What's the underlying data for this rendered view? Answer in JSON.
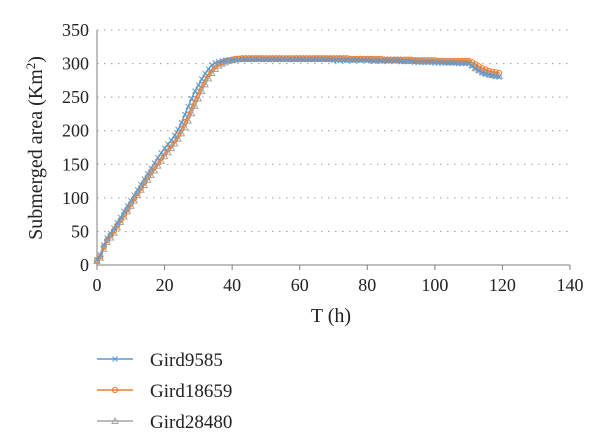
{
  "chart_data": {
    "type": "line",
    "xlabel": "T (h)",
    "ylabel": "Submerged area (Km",
    "ylabel_sup": "2",
    "ylabel_close": ")",
    "xlim": [
      0,
      140
    ],
    "ylim": [
      0,
      350
    ],
    "xticks": [
      0,
      20,
      40,
      60,
      80,
      100,
      120,
      140
    ],
    "yticks": [
      0,
      50,
      100,
      150,
      200,
      250,
      300,
      350
    ],
    "grid": "horizontal dotted",
    "legend_position": "bottom-left",
    "series": [
      {
        "name": "Gird9585",
        "color": "#5b9bd5",
        "marker": "x",
        "x": [
          0,
          1,
          2,
          3,
          4,
          5,
          6,
          7,
          8,
          9,
          10,
          11,
          12,
          13,
          14,
          15,
          16,
          17,
          18,
          19,
          20,
          21,
          22,
          23,
          24,
          25,
          26,
          27,
          28,
          29,
          30,
          31,
          32,
          33,
          34,
          35,
          36,
          37,
          38,
          39,
          40,
          41,
          42,
          43,
          44,
          45,
          46,
          47,
          48,
          49,
          50,
          51,
          52,
          53,
          54,
          55,
          56,
          57,
          58,
          59,
          60,
          61,
          62,
          63,
          64,
          65,
          66,
          67,
          68,
          69,
          70,
          71,
          72,
          73,
          74,
          75,
          76,
          77,
          78,
          79,
          80,
          81,
          82,
          83,
          84,
          85,
          86,
          87,
          88,
          89,
          90,
          91,
          92,
          93,
          94,
          95,
          96,
          97,
          98,
          99,
          100,
          101,
          102,
          103,
          104,
          105,
          106,
          107,
          108,
          109,
          110,
          111,
          112,
          113,
          114,
          115,
          116,
          117,
          118,
          119
        ],
        "y": [
          8,
          15,
          30,
          40,
          47,
          55,
          63,
          71,
          80,
          88,
          96,
          104,
          112,
          120,
          128,
          136,
          144,
          152,
          160,
          167,
          174,
          180,
          186,
          193,
          202,
          212,
          224,
          236,
          248,
          259,
          268,
          277,
          285,
          292,
          298,
          301,
          303,
          304,
          305,
          305,
          305,
          306,
          306,
          306,
          306,
          306,
          306,
          306,
          306,
          306,
          306,
          306,
          306,
          306,
          306,
          306,
          306,
          306,
          306,
          306,
          306,
          306,
          306,
          306,
          306,
          306,
          306,
          306,
          306,
          306,
          305,
          305,
          305,
          305,
          305,
          305,
          305,
          305,
          305,
          305,
          305,
          304,
          304,
          304,
          304,
          304,
          304,
          304,
          304,
          304,
          303,
          303,
          303,
          303,
          302,
          302,
          302,
          302,
          302,
          302,
          301,
          301,
          301,
          301,
          301,
          301,
          301,
          300,
          300,
          300,
          300,
          296,
          292,
          289,
          286,
          284,
          283,
          282,
          281,
          280
        ]
      },
      {
        "name": "Gird18659",
        "color": "#ed7d31",
        "marker": "o",
        "x": [
          0,
          1,
          2,
          3,
          4,
          5,
          6,
          7,
          8,
          9,
          10,
          11,
          12,
          13,
          14,
          15,
          16,
          17,
          18,
          19,
          20,
          21,
          22,
          23,
          24,
          25,
          26,
          27,
          28,
          29,
          30,
          31,
          32,
          33,
          34,
          35,
          36,
          37,
          38,
          39,
          40,
          41,
          42,
          43,
          44,
          45,
          46,
          47,
          48,
          49,
          50,
          51,
          52,
          53,
          54,
          55,
          56,
          57,
          58,
          59,
          60,
          61,
          62,
          63,
          64,
          65,
          66,
          67,
          68,
          69,
          70,
          71,
          72,
          73,
          74,
          75,
          76,
          77,
          78,
          79,
          80,
          81,
          82,
          83,
          84,
          85,
          86,
          87,
          88,
          89,
          90,
          91,
          92,
          93,
          94,
          95,
          96,
          97,
          98,
          99,
          100,
          101,
          102,
          103,
          104,
          105,
          106,
          107,
          108,
          109,
          110,
          111,
          112,
          113,
          114,
          115,
          116,
          117,
          118,
          119
        ],
        "y": [
          7,
          13,
          27,
          37,
          44,
          51,
          59,
          67,
          75,
          83,
          91,
          99,
          107,
          115,
          123,
          131,
          139,
          146,
          153,
          160,
          167,
          173,
          179,
          186,
          194,
          203,
          213,
          224,
          236,
          247,
          258,
          268,
          277,
          285,
          292,
          297,
          300,
          302,
          304,
          305,
          306,
          307,
          307,
          308,
          308,
          308,
          308,
          308,
          308,
          308,
          308,
          308,
          308,
          308,
          308,
          308,
          308,
          308,
          308,
          308,
          308,
          308,
          308,
          308,
          308,
          308,
          308,
          308,
          308,
          308,
          308,
          308,
          308,
          308,
          308,
          307,
          307,
          307,
          307,
          307,
          307,
          307,
          307,
          307,
          307,
          306,
          306,
          306,
          306,
          306,
          306,
          306,
          306,
          306,
          305,
          305,
          305,
          305,
          305,
          305,
          305,
          304,
          304,
          304,
          304,
          304,
          304,
          304,
          304,
          304,
          304,
          302,
          299,
          296,
          293,
          291,
          289,
          288,
          287,
          286
        ]
      },
      {
        "name": "Gird28480",
        "color": "#a5a5a5",
        "marker": "triangle",
        "x": [
          0,
          1,
          2,
          3,
          4,
          5,
          6,
          7,
          8,
          9,
          10,
          11,
          12,
          13,
          14,
          15,
          16,
          17,
          18,
          19,
          20,
          21,
          22,
          23,
          24,
          25,
          26,
          27,
          28,
          29,
          30,
          31,
          32,
          33,
          34,
          35,
          36,
          37,
          38,
          39,
          40,
          41,
          42,
          43,
          44,
          45,
          46,
          47,
          48,
          49,
          50,
          51,
          52,
          53,
          54,
          55,
          56,
          57,
          58,
          59,
          60,
          61,
          62,
          63,
          64,
          65,
          66,
          67,
          68,
          69,
          70,
          71,
          72,
          73,
          74,
          75,
          76,
          77,
          78,
          79,
          80,
          81,
          82,
          83,
          84,
          85,
          86,
          87,
          88,
          89,
          90,
          91,
          92,
          93,
          94,
          95,
          96,
          97,
          98,
          99,
          100,
          101,
          102,
          103,
          104,
          105,
          106,
          107,
          108,
          109,
          110,
          111,
          112,
          113,
          114,
          115,
          116,
          117,
          118,
          119
        ],
        "y": [
          6,
          11,
          24,
          34,
          41,
          48,
          56,
          64,
          72,
          80,
          88,
          96,
          104,
          112,
          119,
          127,
          134,
          141,
          148,
          155,
          162,
          168,
          174,
          181,
          188,
          196,
          205,
          215,
          226,
          237,
          248,
          259,
          269,
          278,
          286,
          292,
          297,
          300,
          302,
          304,
          305,
          306,
          307,
          307,
          307,
          307,
          307,
          307,
          307,
          307,
          307,
          307,
          307,
          307,
          307,
          307,
          307,
          307,
          307,
          307,
          307,
          307,
          307,
          307,
          307,
          307,
          307,
          307,
          307,
          307,
          307,
          307,
          307,
          306,
          306,
          306,
          306,
          306,
          306,
          306,
          306,
          306,
          305,
          305,
          305,
          305,
          305,
          305,
          305,
          305,
          305,
          304,
          304,
          304,
          304,
          304,
          304,
          303,
          303,
          303,
          303,
          303,
          303,
          303,
          302,
          302,
          302,
          302,
          302,
          302,
          302,
          298,
          294,
          291,
          288,
          286,
          284,
          283,
          282,
          282
        ]
      }
    ]
  }
}
